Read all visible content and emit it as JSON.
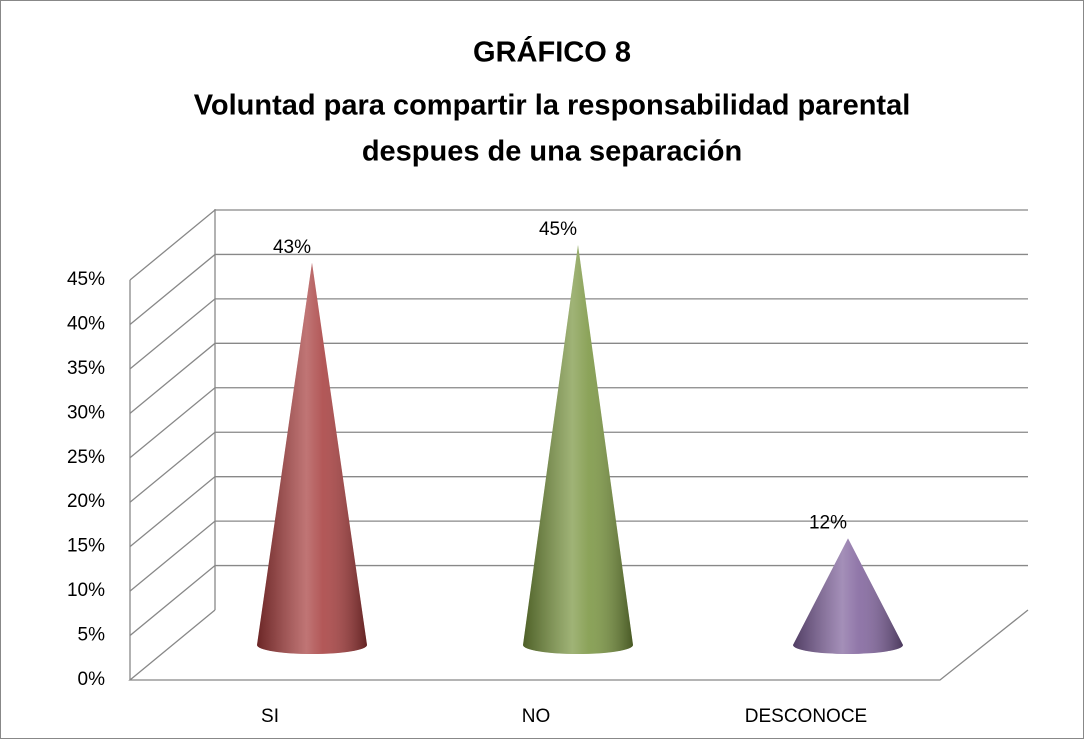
{
  "chart_data": {
    "type": "cone",
    "title": [
      "GRÁFICO 8",
      "Voluntad para compartir la responsabilidad parental",
      "despues de una separación"
    ],
    "categories": [
      "SI",
      "NO",
      "DESCONOCE"
    ],
    "values": [
      43,
      45,
      12
    ],
    "value_labels": [
      "43%",
      "45%",
      "12%"
    ],
    "colors": [
      "#a53a3a",
      "#77933c",
      "#7d5f9a"
    ],
    "ylim": [
      0,
      45
    ],
    "yticks": [
      {
        "value": 0,
        "label": "0%"
      },
      {
        "value": 5,
        "label": "5%"
      },
      {
        "value": 10,
        "label": "10%"
      },
      {
        "value": 15,
        "label": "15%"
      },
      {
        "value": 20,
        "label": "20%"
      },
      {
        "value": 25,
        "label": "25%"
      },
      {
        "value": 30,
        "label": "30%"
      },
      {
        "value": 35,
        "label": "35%"
      },
      {
        "value": 40,
        "label": "40%"
      },
      {
        "value": 45,
        "label": "45%"
      }
    ],
    "grid": true
  }
}
